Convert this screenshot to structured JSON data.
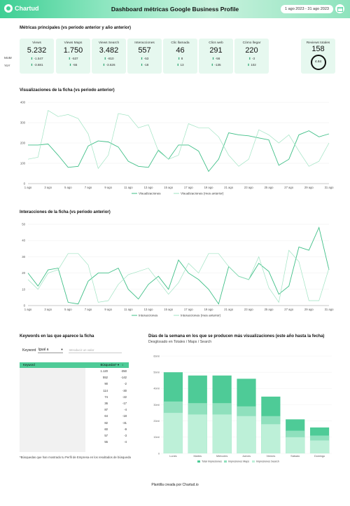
{
  "header": {
    "logo_text": "Chartud",
    "title": "Dashboard métricas Google Business Profile",
    "date_range": "1 ago 2023 - 31 ago 2023"
  },
  "kpis": {
    "section_title": "Métricas principales (vs periodo anterior y año anterior)",
    "row_labels": {
      "mom": "MoM",
      "yoy": "YoY"
    },
    "cards": [
      {
        "name": "Views",
        "value": "5.232",
        "mom": "-1.547",
        "yoy": "-3.681"
      },
      {
        "name": "Views Maps",
        "value": "1.750",
        "mom": "-537",
        "yoy": "-55"
      },
      {
        "name": "Views Search",
        "value": "3.482",
        "mom": "-810",
        "yoy": "-3.626"
      },
      {
        "name": "Interacciones",
        "value": "557",
        "mom": "-53",
        "yoy": "-18"
      },
      {
        "name": "Clic llamada",
        "value": "46",
        "mom": "8",
        "yoy": "13"
      },
      {
        "name": "Clics web",
        "value": "291",
        "mom": "-56",
        "yoy": "-135"
      },
      {
        "name": "Cómo llegar",
        "value": "220",
        "mom": "-3",
        "yoy": "102"
      }
    ],
    "reviews": {
      "name": "Reviews totales",
      "value": "158",
      "rating": "4.84"
    }
  },
  "chart1_title": "Visualizaciones de la ficha (vs periodo anterior)",
  "chart2_title": "Interacciones de la ficha (vs periodo anterior)",
  "keywords": {
    "title": "Keywords en las que aparece la ficha",
    "filter_label": "Keyword",
    "filter_value": "Igual a",
    "filter_placeholder": "Introducir un valor",
    "col_keyword": "Keyword",
    "col_busquedas": "Búsquedas* ▾",
    "rows": [
      {
        "n": "1.120",
        "d": "-350"
      },
      {
        "n": "552",
        "d": "-142"
      },
      {
        "n": "90",
        "d": "-2"
      },
      {
        "n": "114",
        "d": "-30"
      },
      {
        "n": "74",
        "d": "-22"
      },
      {
        "n": "36",
        "d": "-17"
      },
      {
        "n": "87",
        "d": "-4"
      },
      {
        "n": "64",
        "d": "-18"
      },
      {
        "n": "82",
        "d": "-31"
      },
      {
        "n": "60",
        "d": "-9"
      },
      {
        "n": "57",
        "d": "-3"
      },
      {
        "n": "55",
        "d": "-4"
      }
    ],
    "footnote": "*Búsquedas que han mostrado tu Perfil de Empresa en los resultados de búsqueda"
  },
  "weekday": {
    "title": "Días de la semana en los que se producen más visualizaciones (este año hasta la fecha)",
    "subtitle": "Desglosado en Totales / Maps / Search"
  },
  "footer": "Plantilla creada por Chartud.io",
  "colors": {
    "accent": "#3ecf94",
    "line_main": "#3fbf87",
    "line_prev": "#9fe3c2",
    "bar_total": "#4ecb97",
    "bar_maps": "#8fe0bd",
    "bar_search": "#bdf0d8"
  },
  "chart_data": [
    {
      "type": "line",
      "title": "Visualizaciones de la ficha (vs periodo anterior)",
      "x": [
        "1 ago",
        "2 ago",
        "3 ago",
        "4 ago",
        "5 ago",
        "6 ago",
        "7 ago",
        "8 ago",
        "9 ago",
        "10 ago",
        "11 ago",
        "12 ago",
        "13 ago",
        "14 ago",
        "15 ago",
        "16 ago",
        "17 ago",
        "18 ago",
        "19 ago",
        "20 ago",
        "21 ago",
        "22 ago",
        "23 ago",
        "24 ago",
        "25 ago",
        "26 ago",
        "27 ago",
        "28 ago",
        "29 ago",
        "30 ago",
        "31 ago"
      ],
      "x_tick_labels": [
        "1 ago",
        "3 ago",
        "5 ago",
        "7 ago",
        "9 ago",
        "11 ago",
        "13 ago",
        "15 ago",
        "17 ago",
        "19 ago",
        "21 ago",
        "23 ago",
        "25 ago",
        "27 ago",
        "29 ago",
        "31 ago"
      ],
      "ylim": [
        0,
        400
      ],
      "yticks": [
        0,
        100,
        200,
        300,
        400
      ],
      "legend_position": "bottom",
      "series": [
        {
          "name": "Visualizaciones",
          "values": [
            190,
            190,
            195,
            140,
            80,
            85,
            185,
            210,
            205,
            180,
            110,
            85,
            80,
            165,
            120,
            190,
            190,
            160,
            60,
            120,
            250,
            240,
            235,
            225,
            215,
            90,
            120,
            240,
            260,
            230,
            245
          ]
        },
        {
          "name": "Visualizaciones (mes anterior)",
          "values": [
            120,
            130,
            360,
            330,
            340,
            320,
            245,
            75,
            140,
            345,
            335,
            275,
            290,
            160,
            120,
            140,
            295,
            275,
            275,
            230,
            140,
            85,
            120,
            265,
            240,
            200,
            240,
            160,
            85,
            110,
            200
          ]
        }
      ]
    },
    {
      "type": "line",
      "title": "Interacciones de la ficha (vs periodo anterior)",
      "x": [
        "1 ago",
        "2 ago",
        "3 ago",
        "4 ago",
        "5 ago",
        "6 ago",
        "7 ago",
        "8 ago",
        "9 ago",
        "10 ago",
        "11 ago",
        "12 ago",
        "13 ago",
        "14 ago",
        "15 ago",
        "16 ago",
        "17 ago",
        "18 ago",
        "19 ago",
        "20 ago",
        "21 ago",
        "22 ago",
        "23 ago",
        "24 ago",
        "25 ago",
        "26 ago",
        "27 ago",
        "28 ago",
        "29 ago",
        "30 ago",
        "31 ago"
      ],
      "x_tick_labels": [
        "1 ago",
        "3 ago",
        "5 ago",
        "7 ago",
        "9 ago",
        "11 ago",
        "13 ago",
        "15 ago",
        "17 ago",
        "19 ago",
        "21 ago",
        "23 ago",
        "25 ago",
        "27 ago",
        "29 ago",
        "31 ago"
      ],
      "ylim": [
        0,
        50
      ],
      "yticks": [
        0,
        10,
        20,
        30,
        40,
        50
      ],
      "legend_position": "bottom",
      "series": [
        {
          "name": "Interacciones",
          "values": [
            20,
            12,
            22,
            23,
            2,
            1,
            15,
            20,
            20,
            23,
            10,
            4,
            13,
            18,
            10,
            28,
            20,
            16,
            10,
            1,
            24,
            18,
            16,
            26,
            21,
            7,
            12,
            36,
            34,
            48,
            22
          ]
        },
        {
          "name": "Interacciones (mes anterior)",
          "values": [
            16,
            10,
            20,
            22,
            32,
            32,
            25,
            2,
            3,
            13,
            19,
            21,
            23,
            15,
            7,
            14,
            26,
            20,
            32,
            32,
            24,
            18,
            16,
            30,
            11,
            2,
            34,
            27,
            3,
            3,
            23
          ]
        }
      ]
    },
    {
      "type": "bar",
      "title": "Días de la semana en los que se producen más visualizaciones (este año hasta la fecha)",
      "categories": [
        "Lunes",
        "Martes",
        "Miércoles",
        "Jueves",
        "Viernes",
        "Sábado",
        "Domingo"
      ],
      "ylim": [
        0,
        60000
      ],
      "yticks": [
        "0",
        "10mil",
        "20mil",
        "30mil",
        "40mil",
        "50mil",
        "60mil"
      ],
      "legend_position": "bottom",
      "series": [
        {
          "name": "Total Impresiones",
          "values": [
            50000,
            48000,
            48000,
            46000,
            35000,
            21000,
            16000
          ]
        },
        {
          "name": "Impresiones Maps",
          "values": [
            32000,
            31000,
            31000,
            29000,
            23000,
            14000,
            11000
          ]
        },
        {
          "name": "Impresiones Search",
          "values": [
            25000,
            24000,
            24000,
            23000,
            18000,
            10000,
            8000
          ]
        }
      ]
    }
  ]
}
